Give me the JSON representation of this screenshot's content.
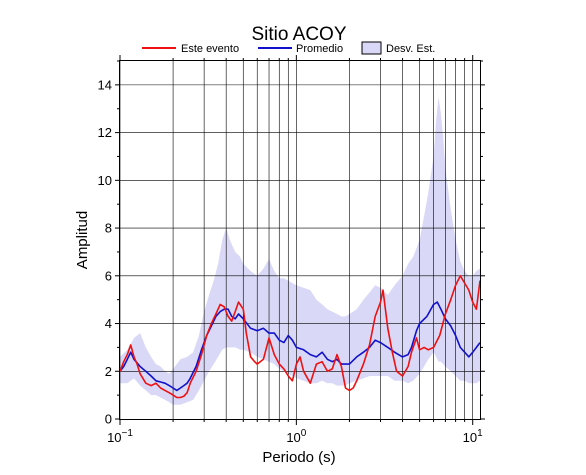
{
  "chart_data": {
    "type": "line",
    "title": "Sitio ACOY",
    "xlabel": "Periodo (s)",
    "ylabel": "Amplitud",
    "xscale": "log",
    "xlim": [
      0.1,
      11
    ],
    "ylim": [
      0,
      15
    ],
    "grid": true,
    "legend_position": "top",
    "y_ticks": [
      "0",
      "2",
      "4",
      "6",
      "8",
      "10",
      "12",
      "14"
    ],
    "x_tick_labels": [
      {
        "value": 0.1,
        "base": "10",
        "exp": "−1"
      },
      {
        "value": 1,
        "base": "10",
        "exp": "0"
      },
      {
        "value": 10,
        "base": "10",
        "exp": "1"
      }
    ],
    "legend": {
      "event_label": "Este evento",
      "mean_label": "Promedio",
      "std_label": "Desv. Est."
    },
    "colors": {
      "event": "#ee1111",
      "mean": "#1111cc",
      "band_fill": "#d9d9f7"
    },
    "series": [
      {
        "name": "Este evento",
        "x": [
          0.1,
          0.105,
          0.11,
          0.115,
          0.12,
          0.125,
          0.13,
          0.14,
          0.15,
          0.16,
          0.17,
          0.18,
          0.19,
          0.2,
          0.21,
          0.22,
          0.23,
          0.24,
          0.25,
          0.27,
          0.29,
          0.31,
          0.33,
          0.35,
          0.37,
          0.39,
          0.41,
          0.43,
          0.45,
          0.47,
          0.5,
          0.52,
          0.55,
          0.58,
          0.6,
          0.65,
          0.7,
          0.75,
          0.8,
          0.85,
          0.9,
          0.95,
          1.0,
          1.05,
          1.1,
          1.2,
          1.3,
          1.4,
          1.5,
          1.6,
          1.7,
          1.8,
          1.9,
          2.0,
          2.1,
          2.2,
          2.4,
          2.6,
          2.8,
          3.0,
          3.1,
          3.2,
          3.3,
          3.5,
          3.7,
          4.0,
          4.3,
          4.5,
          4.8,
          5.0,
          5.3,
          5.6,
          6.0,
          6.5,
          7.0,
          7.5,
          8.0,
          8.5,
          9.0,
          9.5,
          10.0,
          10.5,
          11.0
        ],
        "y": [
          2.0,
          2.4,
          2.7,
          3.1,
          2.6,
          2.3,
          1.9,
          1.5,
          1.4,
          1.5,
          1.3,
          1.2,
          1.1,
          1.0,
          0.9,
          0.9,
          0.95,
          1.1,
          1.5,
          2.0,
          2.7,
          3.5,
          4.0,
          4.4,
          4.8,
          4.7,
          4.3,
          4.1,
          4.5,
          4.9,
          4.6,
          3.6,
          2.6,
          2.4,
          2.3,
          2.5,
          3.4,
          2.7,
          2.3,
          2.1,
          1.8,
          1.6,
          2.3,
          2.6,
          2.0,
          1.5,
          2.3,
          2.4,
          2.0,
          2.1,
          2.7,
          2.2,
          1.3,
          1.2,
          1.3,
          1.6,
          2.3,
          3.1,
          4.3,
          4.9,
          5.4,
          4.6,
          3.8,
          2.8,
          2.0,
          1.8,
          2.2,
          2.8,
          3.4,
          2.9,
          3.0,
          2.9,
          3.0,
          3.5,
          4.4,
          5.0,
          5.6,
          6.0,
          5.7,
          5.4,
          4.9,
          4.6,
          5.8
        ]
      },
      {
        "name": "Promedio",
        "x": [
          0.1,
          0.105,
          0.11,
          0.115,
          0.12,
          0.13,
          0.14,
          0.15,
          0.16,
          0.17,
          0.18,
          0.19,
          0.2,
          0.21,
          0.22,
          0.23,
          0.24,
          0.25,
          0.27,
          0.29,
          0.31,
          0.33,
          0.35,
          0.37,
          0.39,
          0.41,
          0.43,
          0.45,
          0.47,
          0.5,
          0.55,
          0.6,
          0.65,
          0.7,
          0.75,
          0.8,
          0.85,
          0.9,
          0.95,
          1.0,
          1.1,
          1.2,
          1.3,
          1.4,
          1.5,
          1.6,
          1.7,
          1.8,
          1.9,
          2.0,
          2.2,
          2.4,
          2.6,
          2.8,
          3.0,
          3.3,
          3.6,
          4.0,
          4.3,
          4.5,
          4.8,
          5.0,
          5.5,
          6.0,
          6.3,
          6.6,
          7.0,
          7.5,
          8.0,
          8.5,
          9.0,
          9.5,
          10.0,
          10.5,
          11.0
        ],
        "y": [
          2.0,
          2.2,
          2.5,
          2.8,
          2.5,
          2.2,
          2.0,
          1.8,
          1.6,
          1.55,
          1.5,
          1.4,
          1.3,
          1.2,
          1.3,
          1.4,
          1.5,
          1.7,
          2.2,
          2.9,
          3.5,
          3.9,
          4.3,
          4.5,
          4.6,
          4.6,
          4.3,
          4.2,
          4.4,
          4.2,
          3.8,
          3.7,
          3.8,
          3.6,
          3.6,
          3.3,
          3.2,
          3.5,
          3.3,
          3.0,
          2.9,
          2.7,
          2.6,
          2.8,
          2.5,
          2.4,
          2.5,
          2.3,
          2.3,
          2.3,
          2.6,
          2.8,
          3.0,
          3.3,
          3.2,
          3.0,
          2.8,
          2.6,
          2.7,
          3.0,
          3.7,
          4.0,
          4.3,
          4.8,
          4.9,
          4.6,
          4.2,
          3.9,
          3.5,
          3.0,
          2.8,
          2.6,
          2.8,
          3.0,
          3.2
        ]
      }
    ],
    "band": {
      "name": "Desv. Est.",
      "x": [
        0.1,
        0.11,
        0.12,
        0.13,
        0.14,
        0.15,
        0.16,
        0.17,
        0.18,
        0.19,
        0.2,
        0.22,
        0.24,
        0.26,
        0.28,
        0.3,
        0.32,
        0.34,
        0.36,
        0.38,
        0.4,
        0.42,
        0.45,
        0.48,
        0.5,
        0.55,
        0.6,
        0.65,
        0.7,
        0.75,
        0.8,
        0.85,
        0.9,
        0.95,
        1.0,
        1.1,
        1.2,
        1.3,
        1.4,
        1.5,
        1.6,
        1.7,
        1.8,
        1.9,
        2.0,
        2.2,
        2.4,
        2.6,
        2.8,
        3.0,
        3.3,
        3.6,
        4.0,
        4.3,
        4.6,
        5.0,
        5.3,
        5.6,
        6.0,
        6.2,
        6.4,
        6.6,
        6.8,
        7.0,
        7.5,
        8.0,
        8.5,
        9.0,
        9.5,
        10.0,
        10.5,
        11.0
      ],
      "lower": [
        1.5,
        1.5,
        1.7,
        1.4,
        1.2,
        1.0,
        1.0,
        0.9,
        0.8,
        0.7,
        0.6,
        0.6,
        0.7,
        0.8,
        1.2,
        1.6,
        2.0,
        2.3,
        2.6,
        2.9,
        3.0,
        3.0,
        3.0,
        2.9,
        2.9,
        2.8,
        2.6,
        2.5,
        2.4,
        2.3,
        2.1,
        2.0,
        1.9,
        1.8,
        1.7,
        1.6,
        1.5,
        1.5,
        1.6,
        1.5,
        1.5,
        1.4,
        1.4,
        1.4,
        1.5,
        1.6,
        1.7,
        1.8,
        1.8,
        1.8,
        1.8,
        1.6,
        1.6,
        1.5,
        1.6,
        1.9,
        2.2,
        2.5,
        2.8,
        2.6,
        2.4,
        2.4,
        2.3,
        2.2,
        2.0,
        1.8,
        1.6,
        1.6,
        1.5,
        1.5,
        1.5,
        1.6
      ],
      "upper": [
        2.6,
        2.9,
        3.4,
        3.6,
        3.0,
        2.6,
        2.3,
        2.2,
        2.0,
        1.9,
        2.1,
        2.5,
        2.6,
        2.8,
        3.5,
        4.5,
        5.2,
        5.8,
        6.5,
        7.5,
        8.0,
        7.5,
        7.0,
        6.8,
        6.5,
        6.2,
        6.0,
        6.3,
        6.7,
        6.2,
        5.9,
        5.9,
        5.8,
        5.7,
        5.6,
        5.5,
        5.4,
        5.0,
        4.8,
        4.6,
        4.5,
        4.4,
        4.3,
        4.3,
        4.4,
        4.6,
        5.0,
        5.3,
        5.6,
        5.5,
        5.2,
        5.6,
        6.0,
        6.5,
        6.8,
        7.5,
        8.5,
        9.5,
        11.0,
        12.5,
        13.5,
        12.8,
        11.8,
        10.5,
        8.8,
        7.5,
        6.6,
        6.2,
        6.0,
        6.0,
        6.2,
        6.3
      ]
    }
  }
}
